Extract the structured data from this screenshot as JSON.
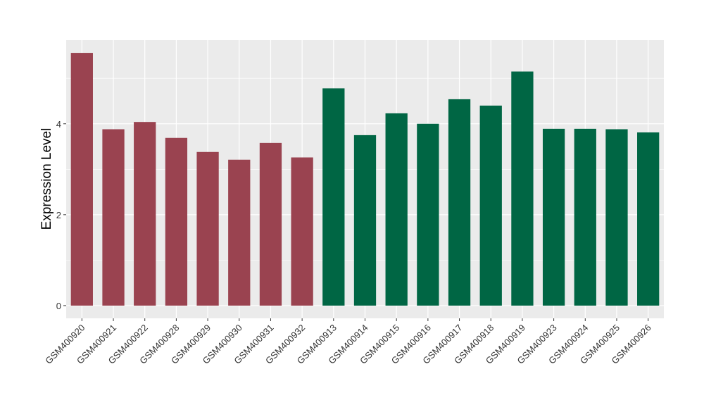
{
  "chart_data": {
    "type": "bar",
    "title": "",
    "xlabel": "",
    "ylabel": "Expression Level",
    "ylim": [
      -0.28,
      5.84
    ],
    "yticks": [
      0,
      2,
      4
    ],
    "grid": true,
    "legend": "none",
    "categories": [
      "GSM400920",
      "GSM400921",
      "GSM400922",
      "GSM400928",
      "GSM400929",
      "GSM400930",
      "GSM400931",
      "GSM400932",
      "GSM400913",
      "GSM400914",
      "GSM400915",
      "GSM400916",
      "GSM400917",
      "GSM400918",
      "GSM400919",
      "GSM400923",
      "GSM400924",
      "GSM400925",
      "GSM400926"
    ],
    "values": [
      5.56,
      3.88,
      4.04,
      3.69,
      3.38,
      3.21,
      3.58,
      3.26,
      4.78,
      3.75,
      4.23,
      4.0,
      4.54,
      4.4,
      5.15,
      3.89,
      3.89,
      3.88,
      3.81
    ],
    "groups": [
      0,
      0,
      0,
      0,
      0,
      0,
      0,
      0,
      1,
      1,
      1,
      1,
      1,
      1,
      1,
      1,
      1,
      1,
      1
    ],
    "colors": [
      "#9a4350",
      "#006644"
    ],
    "panel_background": "#ebebeb",
    "grid_color": "#ffffff"
  }
}
